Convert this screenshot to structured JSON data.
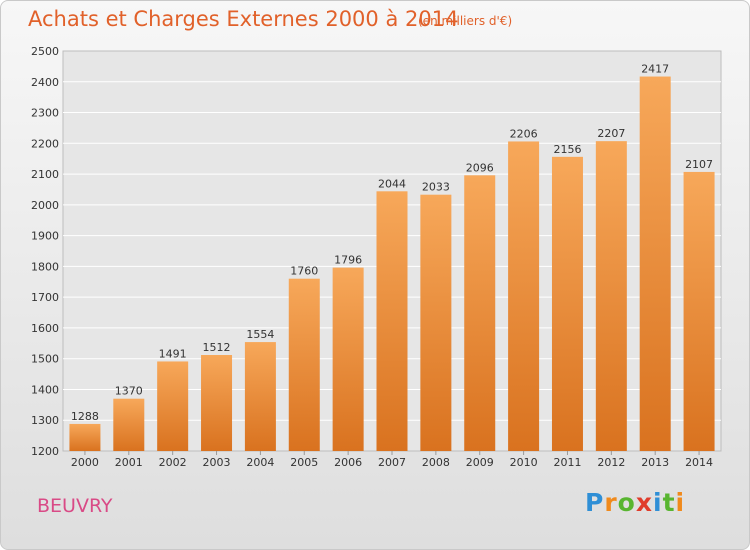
{
  "title": "Achats et Charges Externes 2000 à 2014",
  "subtitle": "(en milliers d'€)",
  "city": "BEUVRY",
  "brand": {
    "letters": [
      "P",
      "r",
      "o",
      "x",
      "i",
      "t",
      "i"
    ],
    "colors": [
      "#2f8fd6",
      "#f08a1c",
      "#58b530",
      "#e03c2b",
      "#2f8fd6",
      "#58b530",
      "#f08a1c"
    ]
  },
  "colors": {
    "title": "#e1612a",
    "bar_top": "#f7a85a",
    "bar_bottom": "#d9721f",
    "city": "#d94a86"
  },
  "chart_data": {
    "type": "bar",
    "categories": [
      "2000",
      "2001",
      "2002",
      "2003",
      "2004",
      "2005",
      "2006",
      "2007",
      "2008",
      "2009",
      "2010",
      "2011",
      "2012",
      "2013",
      "2014"
    ],
    "values": [
      1288,
      1370,
      1491,
      1512,
      1554,
      1760,
      1796,
      2044,
      2033,
      2096,
      2206,
      2156,
      2207,
      2417,
      2107
    ],
    "ylim": [
      1200,
      2500
    ],
    "yticks": [
      1200,
      1300,
      1400,
      1500,
      1600,
      1700,
      1800,
      1900,
      2000,
      2100,
      2200,
      2300,
      2400,
      2500
    ],
    "grid": true,
    "xlabel": "",
    "ylabel": ""
  }
}
